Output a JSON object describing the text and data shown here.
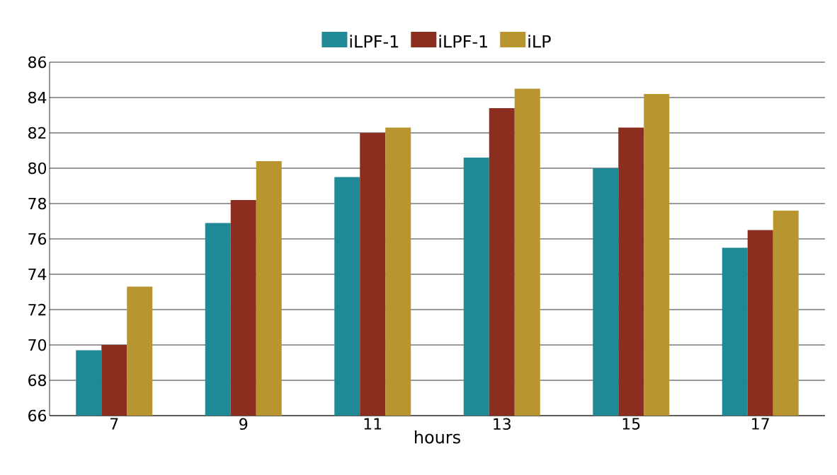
{
  "chart_data": {
    "type": "bar",
    "xlabel": "hours",
    "categories": [
      "7",
      "9",
      "11",
      "13",
      "15",
      "17"
    ],
    "series": [
      {
        "name": "iLPF-1",
        "color": "#1f8a96",
        "values": [
          69.7,
          76.9,
          79.5,
          80.6,
          80.0,
          75.5
        ]
      },
      {
        "name": "iLPF-1",
        "color": "#8b2e1f",
        "values": [
          70.0,
          78.2,
          82.0,
          83.4,
          82.3,
          76.5
        ]
      },
      {
        "name": "iLP",
        "color": "#b8952e",
        "values": [
          73.3,
          80.4,
          82.3,
          84.5,
          84.2,
          77.6
        ]
      }
    ],
    "ylim": [
      66,
      86
    ],
    "yticks": [
      66,
      68,
      70,
      72,
      74,
      76,
      78,
      80,
      82,
      84,
      86
    ],
    "grid": "y",
    "legend": "top"
  }
}
